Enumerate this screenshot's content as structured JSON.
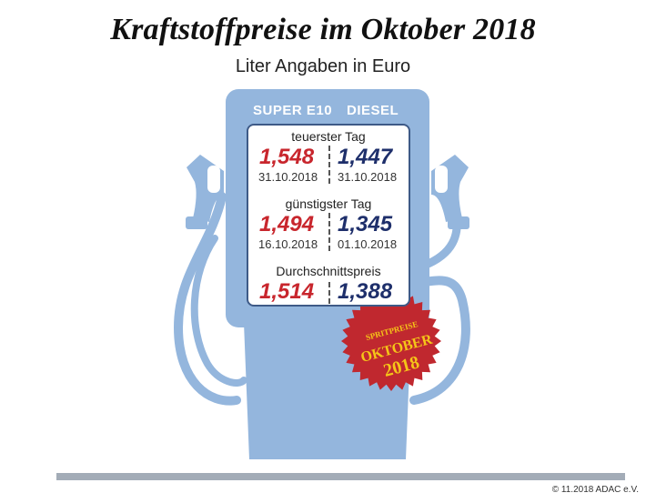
{
  "title": "Kraftstoffpreise im Oktober 2018",
  "subtitle": "Liter Angaben in Euro",
  "columns": {
    "super": "SUPER E10",
    "diesel": "DIESEL"
  },
  "sections": [
    {
      "label": "teuerster Tag",
      "super": {
        "price": "1,548",
        "date": "31.10.2018"
      },
      "diesel": {
        "price": "1,447",
        "date": "31.10.2018"
      }
    },
    {
      "label": "günstigster Tag",
      "super": {
        "price": "1,494",
        "date": "16.10.2018"
      },
      "diesel": {
        "price": "1,345",
        "date": "01.10.2018"
      }
    },
    {
      "label": "Durchschnittspreis",
      "super": {
        "price": "1,514"
      },
      "diesel": {
        "price": "1,388"
      }
    }
  ],
  "badge": {
    "line1": "SPRITPREISE",
    "line2": "OKTOBER",
    "line3": "2018"
  },
  "copyright": "© 11.2018 ADAC e.V.",
  "colors": {
    "pump": "#94b6dd",
    "super": "#c8262d",
    "diesel": "#1e2f6b",
    "badge": "#c0282f",
    "badge_text": "#f5c518"
  },
  "icons": [
    "fuel-pump-icon",
    "fuel-nozzle-left-icon",
    "fuel-nozzle-right-icon",
    "seal-badge-icon"
  ]
}
